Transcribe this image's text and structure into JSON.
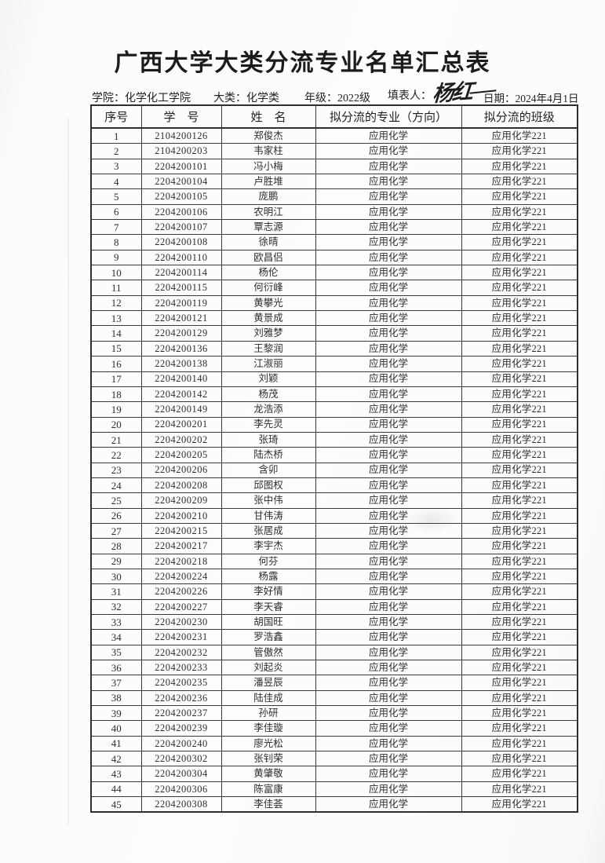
{
  "page": {
    "title": "广西大学大类分流专业名单汇总表"
  },
  "meta": {
    "college_label": "学院：",
    "college_value": "化学化工学院",
    "category_label": "大类：",
    "category_value": "化学类",
    "grade_label": "年级：",
    "grade_value": "2022级",
    "filler_label": "填表人：",
    "filler_value": "杨红",
    "date_label": "日期：",
    "date_value": "2024年4月1日"
  },
  "table": {
    "headers": [
      "序号",
      "学　号",
      "姓　名",
      "拟分流的专业（方向）",
      "拟分流的班级"
    ],
    "rows": [
      [
        "1",
        "2104200126",
        "郑俊杰",
        "应用化学",
        "应用化学221"
      ],
      [
        "2",
        "2104200203",
        "韦家柱",
        "应用化学",
        "应用化学221"
      ],
      [
        "3",
        "2204200101",
        "冯小梅",
        "应用化学",
        "应用化学221"
      ],
      [
        "4",
        "2204200104",
        "卢胜堆",
        "应用化学",
        "应用化学221"
      ],
      [
        "5",
        "2204200105",
        "庞鹏",
        "应用化学",
        "应用化学221"
      ],
      [
        "6",
        "2204200106",
        "农明江",
        "应用化学",
        "应用化学221"
      ],
      [
        "7",
        "2204200107",
        "覃志源",
        "应用化学",
        "应用化学221"
      ],
      [
        "8",
        "2204200108",
        "徐晴",
        "应用化学",
        "应用化学221"
      ],
      [
        "9",
        "2204200110",
        "欧昌侣",
        "应用化学",
        "应用化学221"
      ],
      [
        "10",
        "2204200114",
        "杨伦",
        "应用化学",
        "应用化学221"
      ],
      [
        "11",
        "2204200115",
        "何衍峰",
        "应用化学",
        "应用化学221"
      ],
      [
        "12",
        "2204200119",
        "黄攀光",
        "应用化学",
        "应用化学221"
      ],
      [
        "13",
        "2204200121",
        "黄景成",
        "应用化学",
        "应用化学221"
      ],
      [
        "14",
        "2204200129",
        "刘雅梦",
        "应用化学",
        "应用化学221"
      ],
      [
        "15",
        "2204200136",
        "王黎润",
        "应用化学",
        "应用化学221"
      ],
      [
        "16",
        "2204200138",
        "江淑丽",
        "应用化学",
        "应用化学221"
      ],
      [
        "17",
        "2204200140",
        "刘颖",
        "应用化学",
        "应用化学221"
      ],
      [
        "18",
        "2204200142",
        "杨茂",
        "应用化学",
        "应用化学221"
      ],
      [
        "19",
        "2204200149",
        "龙浩添",
        "应用化学",
        "应用化学221"
      ],
      [
        "20",
        "2204200201",
        "李先灵",
        "应用化学",
        "应用化学221"
      ],
      [
        "21",
        "2204200202",
        "张琦",
        "应用化学",
        "应用化学221"
      ],
      [
        "22",
        "2204200205",
        "陆杰桥",
        "应用化学",
        "应用化学221"
      ],
      [
        "23",
        "2204200206",
        "含卯",
        "应用化学",
        "应用化学221"
      ],
      [
        "24",
        "2204200208",
        "邱图权",
        "应用化学",
        "应用化学221"
      ],
      [
        "25",
        "2204200209",
        "张中伟",
        "应用化学",
        "应用化学221"
      ],
      [
        "26",
        "2204200210",
        "甘伟涛",
        "应用化学",
        "应用化学221"
      ],
      [
        "27",
        "2204200215",
        "张居成",
        "应用化学",
        "应用化学221"
      ],
      [
        "28",
        "2204200217",
        "李宇杰",
        "应用化学",
        "应用化学221"
      ],
      [
        "29",
        "2204200218",
        "何芬",
        "应用化学",
        "应用化学221"
      ],
      [
        "30",
        "2204200224",
        "杨露",
        "应用化学",
        "应用化学221"
      ],
      [
        "31",
        "2204200226",
        "李好情",
        "应用化学",
        "应用化学221"
      ],
      [
        "32",
        "2204200227",
        "李天睿",
        "应用化学",
        "应用化学221"
      ],
      [
        "33",
        "2204200230",
        "胡国旺",
        "应用化学",
        "应用化学221"
      ],
      [
        "34",
        "2204200231",
        "罗浩鑫",
        "应用化学",
        "应用化学221"
      ],
      [
        "35",
        "2204200232",
        "管傲然",
        "应用化学",
        "应用化学221"
      ],
      [
        "36",
        "2204200233",
        "刘起炎",
        "应用化学",
        "应用化学221"
      ],
      [
        "37",
        "2204200235",
        "潘昱辰",
        "应用化学",
        "应用化学221"
      ],
      [
        "38",
        "2204200236",
        "陆佳成",
        "应用化学",
        "应用化学221"
      ],
      [
        "39",
        "2204200237",
        "孙研",
        "应用化学",
        "应用化学221"
      ],
      [
        "40",
        "2204200239",
        "李佳璇",
        "应用化学",
        "应用化学221"
      ],
      [
        "41",
        "2204200240",
        "廖光松",
        "应用化学",
        "应用化学221"
      ],
      [
        "42",
        "2204200302",
        "张钊荣",
        "应用化学",
        "应用化学221"
      ],
      [
        "43",
        "2204200304",
        "黄肇敬",
        "应用化学",
        "应用化学221"
      ],
      [
        "44",
        "2204200306",
        "陈富康",
        "应用化学",
        "应用化学221"
      ],
      [
        "45",
        "2204200308",
        "李佳荟",
        "应用化学",
        "应用化学221"
      ]
    ]
  }
}
